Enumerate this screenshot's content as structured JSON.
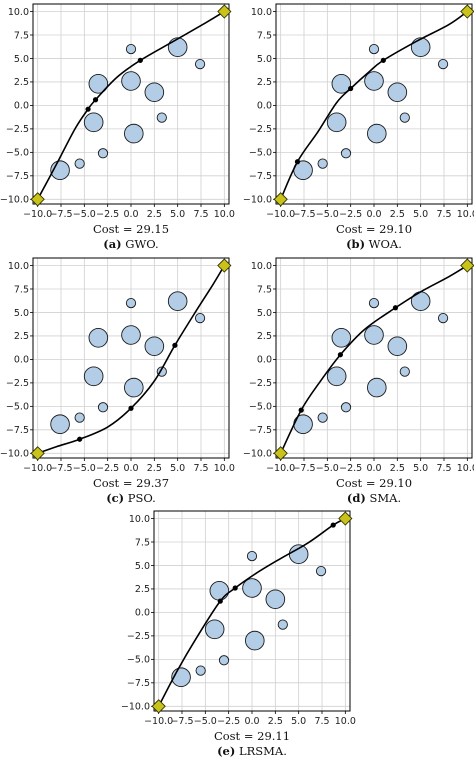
{
  "chart_data": [
    {
      "type": "scatter",
      "cost_text": "Cost = 29.15",
      "caption_letter": "(a)",
      "caption_text": " GWO.",
      "xlim": [
        -10.5,
        10.5
      ],
      "ylim": [
        -10.5,
        10.8
      ],
      "ticks": [
        -10,
        -7.5,
        -5,
        -2.5,
        0,
        2.5,
        5,
        7.5,
        10
      ],
      "tick_labels": [
        "−10.0",
        "−7.5",
        "−5.0",
        "−2.5",
        "0.0",
        "2.5",
        "5.0",
        "7.5",
        "10.0"
      ],
      "start": [
        -10,
        -10
      ],
      "end": [
        10,
        10
      ],
      "waypoints": [
        [
          -4.6,
          -0.4
        ],
        [
          -3.8,
          0.6
        ],
        [
          1.0,
          4.8
        ]
      ],
      "path": [
        [
          -10,
          -10
        ],
        [
          -8,
          -6.3
        ],
        [
          -6,
          -2.5
        ],
        [
          -4.6,
          -0.4
        ],
        [
          -3.8,
          0.6
        ],
        [
          -1.5,
          3.0
        ],
        [
          1.0,
          4.8
        ],
        [
          4.5,
          6.8
        ],
        [
          8,
          8.8
        ],
        [
          10,
          10
        ]
      ]
    },
    {
      "type": "scatter",
      "cost_text": "Cost = 29.10",
      "caption_letter": "(b)",
      "caption_text": " WOA.",
      "xlim": [
        -10.5,
        10.5
      ],
      "ylim": [
        -10.5,
        10.8
      ],
      "ticks": [
        -10,
        -7.5,
        -5,
        -2.5,
        0,
        2.5,
        5,
        7.5,
        10
      ],
      "tick_labels": [
        "−10.0",
        "−7.5",
        "−5.0",
        "−2.5",
        "0.0",
        "2.5",
        "5.0",
        "7.5",
        "10.0"
      ],
      "start": [
        -10,
        -10
      ],
      "end": [
        10,
        10
      ],
      "waypoints": [
        [
          -8.2,
          -6.0
        ],
        [
          -2.5,
          1.8
        ],
        [
          1.0,
          4.8
        ]
      ],
      "path": [
        [
          -10,
          -10
        ],
        [
          -8.2,
          -6.0
        ],
        [
          -6,
          -2.8
        ],
        [
          -4,
          0.3
        ],
        [
          -2.5,
          1.8
        ],
        [
          -0.5,
          3.6
        ],
        [
          1.0,
          4.8
        ],
        [
          4.5,
          6.8
        ],
        [
          8,
          8.6
        ],
        [
          10,
          10
        ]
      ]
    },
    {
      "type": "scatter",
      "cost_text": "Cost = 29.37",
      "caption_letter": "(c)",
      "caption_text": " PSO.",
      "xlim": [
        -10.5,
        10.5
      ],
      "ylim": [
        -10.5,
        10.8
      ],
      "ticks": [
        -10,
        -7.5,
        -5,
        -2.5,
        0,
        2.5,
        5,
        7.5,
        10
      ],
      "tick_labels": [
        "−10.0",
        "−7.5",
        "−5.0",
        "−2.5",
        "0.0",
        "2.5",
        "5.0",
        "7.5",
        "10.0"
      ],
      "start": [
        -10,
        -10
      ],
      "end": [
        10,
        10
      ],
      "waypoints": [
        [
          -5.5,
          -8.5
        ],
        [
          0.0,
          -5.2
        ],
        [
          4.7,
          1.5
        ]
      ],
      "path": [
        [
          -10,
          -10
        ],
        [
          -8,
          -9.3
        ],
        [
          -5.5,
          -8.5
        ],
        [
          -2.5,
          -7.2
        ],
        [
          0.0,
          -5.2
        ],
        [
          2.5,
          -2.3
        ],
        [
          4.7,
          1.5
        ],
        [
          7,
          5.2
        ],
        [
          8.8,
          8.0
        ],
        [
          10,
          10
        ]
      ]
    },
    {
      "type": "scatter",
      "cost_text": "Cost = 29.10",
      "caption_letter": "(d)",
      "caption_text": " SMA.",
      "xlim": [
        -10.5,
        10.5
      ],
      "ylim": [
        -10.5,
        10.8
      ],
      "ticks": [
        -10,
        -7.5,
        -5,
        -2.5,
        0,
        2.5,
        5,
        7.5,
        10
      ],
      "tick_labels": [
        "−10.0",
        "−7.5",
        "−5.0",
        "−2.5",
        "0.0",
        "2.5",
        "5.0",
        "7.5",
        "10.0"
      ],
      "start": [
        -10,
        -10
      ],
      "end": [
        10,
        10
      ],
      "waypoints": [
        [
          -7.8,
          -5.4
        ],
        [
          -3.6,
          0.5
        ],
        [
          2.3,
          5.5
        ]
      ],
      "path": [
        [
          -10,
          -10
        ],
        [
          -7.8,
          -5.4
        ],
        [
          -5.8,
          -2.4
        ],
        [
          -3.6,
          0.5
        ],
        [
          -1,
          3.2
        ],
        [
          2.3,
          5.5
        ],
        [
          5,
          7.2
        ],
        [
          8,
          8.8
        ],
        [
          10,
          10
        ]
      ]
    },
    {
      "type": "scatter",
      "cost_text": "Cost = 29.11",
      "caption_letter": "(e)",
      "caption_text": " LRSMA.",
      "xlim": [
        -10.5,
        10.5
      ],
      "ylim": [
        -10.5,
        10.8
      ],
      "ticks": [
        -10,
        -7.5,
        -5,
        -2.5,
        0,
        2.5,
        5,
        7.5,
        10
      ],
      "tick_labels": [
        "−10.0",
        "−7.5",
        "−5.0",
        "−2.5",
        "0.0",
        "2.5",
        "5.0",
        "7.5",
        "10.0"
      ],
      "start": [
        -10,
        -10
      ],
      "end": [
        10,
        10
      ],
      "waypoints": [
        [
          -3.4,
          1.2
        ],
        [
          -1.8,
          2.6
        ],
        [
          8.7,
          9.3
        ]
      ],
      "path": [
        [
          -10,
          -10
        ],
        [
          -8,
          -6.2
        ],
        [
          -6,
          -2.8
        ],
        [
          -3.4,
          1.2
        ],
        [
          -1.8,
          2.6
        ],
        [
          0.5,
          4.2
        ],
        [
          3,
          5.7
        ],
        [
          6,
          7.4
        ],
        [
          8.7,
          9.3
        ],
        [
          10,
          10
        ]
      ]
    }
  ],
  "obstacles": [
    {
      "x": 5.0,
      "y": 6.2,
      "r": 1.0
    },
    {
      "x": 0.0,
      "y": 6.0,
      "r": 0.5
    },
    {
      "x": 7.4,
      "y": 4.4,
      "r": 0.5
    },
    {
      "x": -3.5,
      "y": 2.3,
      "r": 1.0
    },
    {
      "x": 0.0,
      "y": 2.6,
      "r": 1.0
    },
    {
      "x": 2.5,
      "y": 1.4,
      "r": 1.0
    },
    {
      "x": -4.0,
      "y": -1.8,
      "r": 1.0
    },
    {
      "x": 0.3,
      "y": -3.0,
      "r": 1.0
    },
    {
      "x": 3.3,
      "y": -1.3,
      "r": 0.5
    },
    {
      "x": -3.0,
      "y": -5.1,
      "r": 0.5
    },
    {
      "x": -5.5,
      "y": -6.2,
      "r": 0.5
    },
    {
      "x": -7.6,
      "y": -6.9,
      "r": 1.0
    }
  ],
  "colors": {
    "obstacle_fill": "#b3cde6",
    "obstacle_stroke": "#1a1a1a",
    "path": "#000000",
    "waypoint": "#000000",
    "endpoint_fill": "#c8c21a",
    "endpoint_stroke": "#333300",
    "grid": "#d0d0d0",
    "axis": "#000000"
  }
}
